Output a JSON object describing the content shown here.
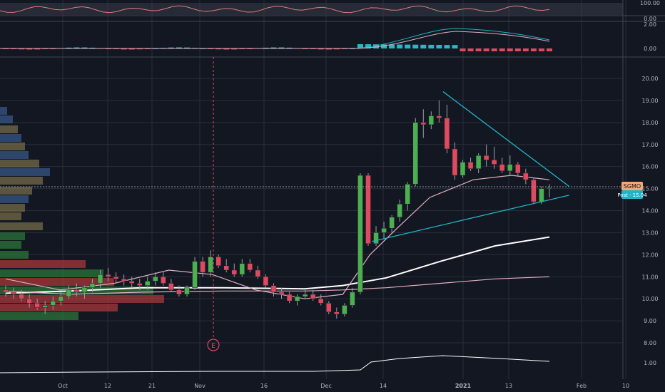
{
  "chart_data": {
    "type": "candlestick",
    "ticker": "SGMO",
    "price_label": "SGMO",
    "post_label": "Post · 15.04",
    "last_price": 15.04,
    "earnings_marker": "E",
    "colors": {
      "background": "#131722",
      "grid": "#2a2e39",
      "up": "#4caf50",
      "down": "#e04a5f",
      "trendline": "#1fb5c8",
      "ma_white": "#ffffff",
      "ma_pink": "#e0b0c0",
      "sgmo_badge": "#f5a77a",
      "post_badge": "#1fb5c8"
    },
    "x_tick_labels": [
      "Oct",
      "12",
      "21",
      "Nov",
      "16",
      "Dec",
      "14",
      "2021",
      "13",
      "Feb",
      "10"
    ],
    "main_panel": {
      "y_ticks": [
        "20.00",
        "19.00",
        "18.00",
        "17.00",
        "16.00",
        "15.00",
        "14.00",
        "13.00",
        "12.00",
        "11.00",
        "10.00",
        "9.00",
        "8.00"
      ],
      "y_range": [
        7.5,
        20.7
      ],
      "candles": [
        [
          10.4,
          10.6,
          10.1,
          10.3
        ],
        [
          10.3,
          10.5,
          10.0,
          10.2
        ],
        [
          10.2,
          10.4,
          9.9,
          10.0
        ],
        [
          10.0,
          10.2,
          9.6,
          9.8
        ],
        [
          9.8,
          10.0,
          9.5,
          9.6
        ],
        [
          9.6,
          9.9,
          9.3,
          9.7
        ],
        [
          9.7,
          10.1,
          9.5,
          9.9
        ],
        [
          9.9,
          10.3,
          9.7,
          10.1
        ],
        [
          10.1,
          10.6,
          10.0,
          10.4
        ],
        [
          10.4,
          10.7,
          10.1,
          10.3
        ],
        [
          10.3,
          10.6,
          10.0,
          10.5
        ],
        [
          10.5,
          10.9,
          10.3,
          10.7
        ],
        [
          10.7,
          11.3,
          10.5,
          11.1
        ],
        [
          11.1,
          11.4,
          10.8,
          11.0
        ],
        [
          11.0,
          11.2,
          10.7,
          10.9
        ],
        [
          10.9,
          11.1,
          10.6,
          10.8
        ],
        [
          10.8,
          11.0,
          10.5,
          10.7
        ],
        [
          10.7,
          10.9,
          10.4,
          10.6
        ],
        [
          10.6,
          11.0,
          10.4,
          10.8
        ],
        [
          10.8,
          11.2,
          10.6,
          11.0
        ],
        [
          11.0,
          11.2,
          10.6,
          10.7
        ],
        [
          10.7,
          10.9,
          10.3,
          10.4
        ],
        [
          10.4,
          10.6,
          10.1,
          10.2
        ],
        [
          10.2,
          10.6,
          10.1,
          10.5
        ],
        [
          10.5,
          11.9,
          10.4,
          11.7
        ],
        [
          11.7,
          11.9,
          11.0,
          11.2
        ],
        [
          11.2,
          12.2,
          11.0,
          11.9
        ],
        [
          11.9,
          12.0,
          11.4,
          11.5
        ],
        [
          11.5,
          11.8,
          11.2,
          11.3
        ],
        [
          11.3,
          11.6,
          11.0,
          11.1
        ],
        [
          11.1,
          11.8,
          11.0,
          11.6
        ],
        [
          11.6,
          11.8,
          11.2,
          11.3
        ],
        [
          11.3,
          11.5,
          10.9,
          11.0
        ],
        [
          11.0,
          11.1,
          10.5,
          10.6
        ],
        [
          10.6,
          10.7,
          10.1,
          10.3
        ],
        [
          10.3,
          10.5,
          10.0,
          10.2
        ],
        [
          10.2,
          10.3,
          9.8,
          9.9
        ],
        [
          9.9,
          10.2,
          9.7,
          10.1
        ],
        [
          10.1,
          10.4,
          10.0,
          10.2
        ],
        [
          10.2,
          10.4,
          9.9,
          10.0
        ],
        [
          10.0,
          10.2,
          9.7,
          9.8
        ],
        [
          9.8,
          9.9,
          9.3,
          9.4
        ],
        [
          9.4,
          9.6,
          9.1,
          9.3
        ],
        [
          9.3,
          9.8,
          9.2,
          9.7
        ],
        [
          9.7,
          10.5,
          9.6,
          10.3
        ],
        [
          10.3,
          15.7,
          10.2,
          15.6
        ],
        [
          15.6,
          15.7,
          12.4,
          12.5
        ],
        [
          12.5,
          13.3,
          12.4,
          13.0
        ],
        [
          13.0,
          13.5,
          12.7,
          13.2
        ],
        [
          13.2,
          13.8,
          13.0,
          13.7
        ],
        [
          13.7,
          14.5,
          13.5,
          14.3
        ],
        [
          14.3,
          15.3,
          14.0,
          15.2
        ],
        [
          15.2,
          18.2,
          15.1,
          18.0
        ],
        [
          18.0,
          18.6,
          17.3,
          17.9
        ],
        [
          17.9,
          18.5,
          17.7,
          18.3
        ],
        [
          18.3,
          19.0,
          18.0,
          18.2
        ],
        [
          18.2,
          18.8,
          16.6,
          16.8
        ],
        [
          16.8,
          17.1,
          15.4,
          15.6
        ],
        [
          15.6,
          16.3,
          15.5,
          16.2
        ],
        [
          16.2,
          16.4,
          15.8,
          15.9
        ],
        [
          15.9,
          16.6,
          15.7,
          16.5
        ],
        [
          16.5,
          17.0,
          16.0,
          16.3
        ],
        [
          16.3,
          16.9,
          15.9,
          16.1
        ],
        [
          16.1,
          16.4,
          15.7,
          15.8
        ],
        [
          15.8,
          16.5,
          15.6,
          16.1
        ],
        [
          16.1,
          16.2,
          15.6,
          15.7
        ],
        [
          15.7,
          15.9,
          15.2,
          15.4
        ],
        [
          15.4,
          15.5,
          14.3,
          14.4
        ],
        [
          14.4,
          15.1,
          14.3,
          15.0
        ],
        [
          15.0,
          15.2,
          14.6,
          15.04
        ]
      ],
      "moving_averages": [
        {
          "color": "#ffffff",
          "points": [
            [
              0,
              10.25
            ],
            [
              0.12,
              10.35
            ],
            [
              0.25,
              10.5
            ],
            [
              0.4,
              10.5
            ],
            [
              0.55,
              10.45
            ],
            [
              0.62,
              10.6
            ],
            [
              0.7,
              10.95
            ],
            [
              0.8,
              11.7
            ],
            [
              0.9,
              12.4
            ],
            [
              1.0,
              12.8
            ]
          ]
        },
        {
          "color": "#e0b0c0",
          "points": [
            [
              0,
              10.35
            ],
            [
              0.12,
              10.2
            ],
            [
              0.25,
              10.3
            ],
            [
              0.4,
              10.35
            ],
            [
              0.55,
              10.35
            ],
            [
              0.62,
              10.4
            ],
            [
              0.7,
              10.5
            ],
            [
              0.8,
              10.7
            ],
            [
              0.9,
              10.9
            ],
            [
              1.0,
              11.0
            ]
          ]
        },
        {
          "color": "#e0b0c0",
          "points": [
            [
              0,
              10.9
            ],
            [
              0.1,
              10.4
            ],
            [
              0.2,
              10.7
            ],
            [
              0.3,
              11.3
            ],
            [
              0.38,
              11.1
            ],
            [
              0.46,
              10.4
            ],
            [
              0.55,
              10.0
            ],
            [
              0.62,
              10.2
            ],
            [
              0.67,
              12.0
            ],
            [
              0.72,
              13.2
            ],
            [
              0.78,
              14.6
            ],
            [
              0.86,
              15.4
            ],
            [
              0.93,
              15.6
            ],
            [
              1.0,
              15.4
            ]
          ]
        }
      ],
      "trendlines": [
        {
          "from": [
            46.5,
            12.6
          ],
          "to": [
            71.5,
            14.7
          ]
        },
        {
          "from": [
            55.5,
            19.4
          ],
          "to": [
            71.5,
            15.1
          ]
        }
      ]
    },
    "rsi_panel": {
      "y_ticks": [
        "100.00",
        "0.00"
      ]
    },
    "macd_panel": {
      "y_ticks": [
        "2.00",
        "0.00"
      ]
    },
    "bottom_panel": {
      "y_ticks": [
        "1.00"
      ]
    }
  }
}
